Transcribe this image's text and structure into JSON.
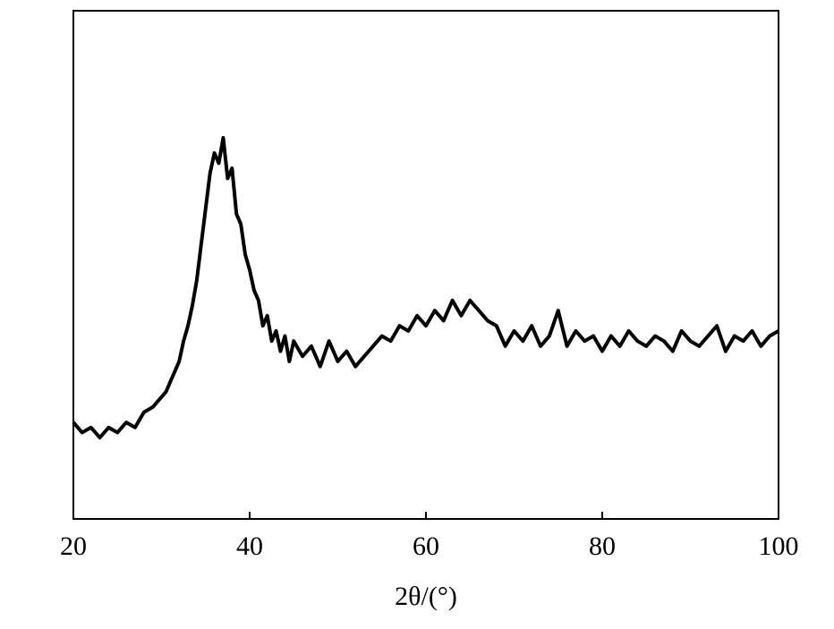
{
  "chart_data": {
    "type": "line",
    "xlabel": "2θ/(°)",
    "x": [
      20,
      21,
      22,
      23,
      24,
      25,
      26,
      27,
      28,
      29,
      30,
      30.5,
      31,
      31.5,
      32,
      32.5,
      33,
      33.5,
      34,
      34.5,
      35,
      35.5,
      36,
      36.5,
      37,
      37.5,
      38,
      38.5,
      39,
      39.5,
      40,
      40.5,
      41,
      41.5,
      42,
      42.5,
      43,
      43.5,
      44,
      44.5,
      45,
      46,
      47,
      48,
      49,
      50,
      51,
      52,
      53,
      54,
      55,
      56,
      57,
      58,
      59,
      60,
      61,
      62,
      63,
      64,
      65,
      66,
      67,
      68,
      69,
      70,
      71,
      72,
      73,
      74,
      75,
      76,
      77,
      78,
      79,
      80,
      81,
      82,
      83,
      84,
      85,
      86,
      87,
      88,
      89,
      90,
      91,
      92,
      93,
      94,
      95,
      96,
      97,
      98,
      99,
      100
    ],
    "values": [
      19,
      17,
      18,
      16,
      18,
      17,
      19,
      18,
      21,
      22,
      24,
      25,
      27,
      29,
      31,
      35,
      38,
      42,
      47,
      54,
      61,
      68,
      72,
      70,
      75,
      67,
      69,
      60,
      58,
      52,
      49,
      45,
      43,
      38,
      40,
      35,
      37,
      33,
      36,
      31,
      35,
      32,
      34,
      30,
      35,
      31,
      33,
      30,
      32,
      34,
      36,
      35,
      38,
      37,
      40,
      38,
      41,
      39,
      43,
      40,
      43,
      41,
      39,
      38,
      34,
      37,
      35,
      38,
      34,
      36,
      41,
      34,
      37,
      35,
      36,
      33,
      36,
      34,
      37,
      35,
      34,
      36,
      35,
      33,
      37,
      35,
      34,
      36,
      38,
      33,
      36,
      35,
      37,
      34,
      36,
      37
    ],
    "color": "#000000",
    "xlim": [
      20,
      100
    ],
    "xticks": [
      20,
      40,
      60,
      80,
      100
    ],
    "ylim": [
      0,
      100
    ]
  }
}
